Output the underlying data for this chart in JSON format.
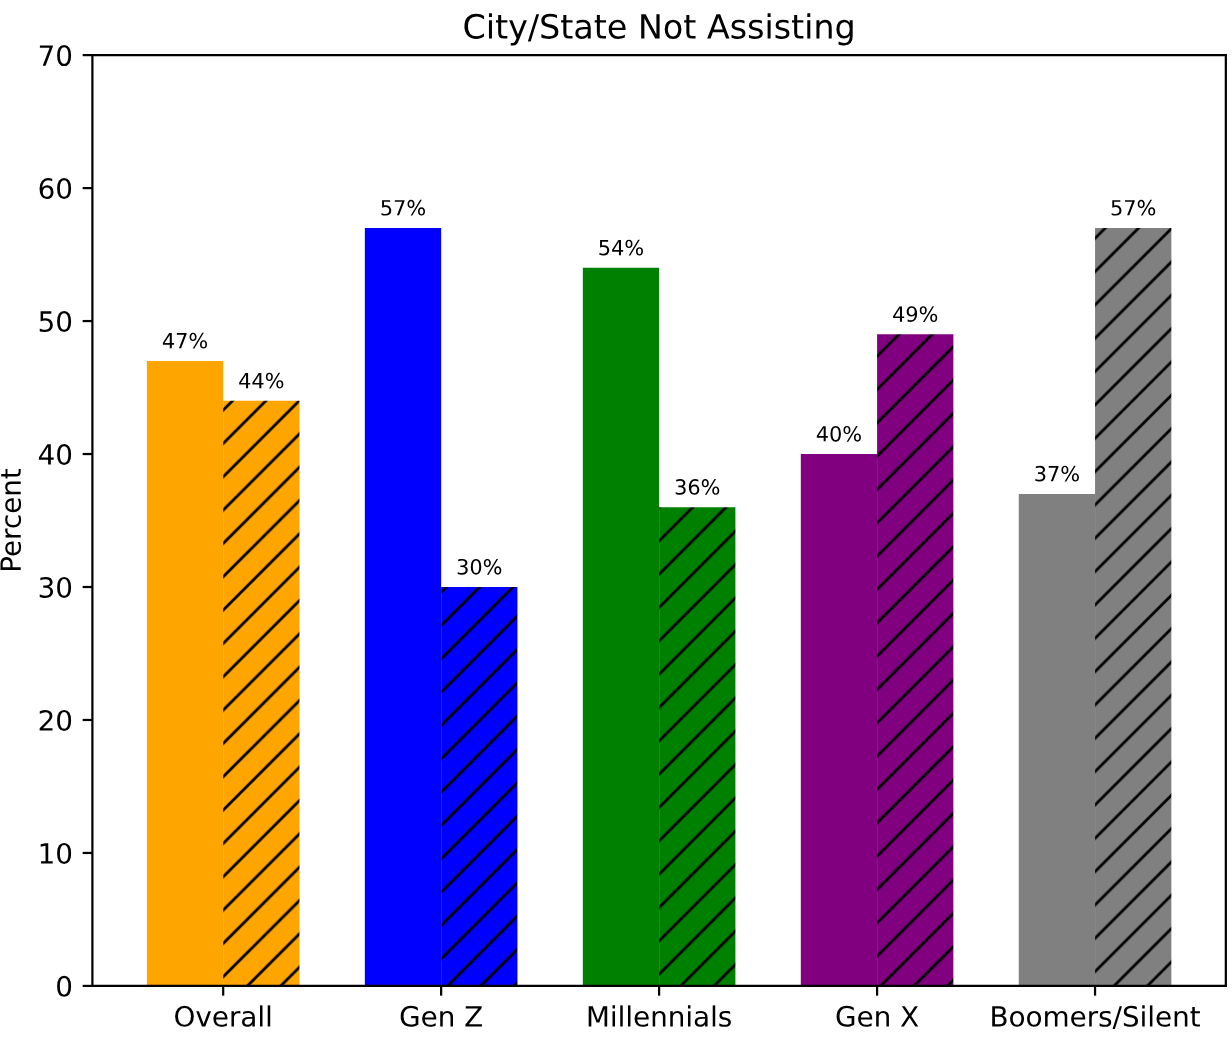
{
  "chart_data": {
    "type": "bar",
    "title": "City/State Not Assisting",
    "ylabel": "Percent",
    "categories": [
      "Overall",
      "Gen Z",
      "Millennials",
      "Gen X",
      "Boomers/Silent"
    ],
    "series": [
      {
        "colors": [
          "#ffa500",
          "#0000ff",
          "#008000",
          "#800080",
          "#808080"
        ],
        "values": [
          47,
          57,
          54,
          40,
          37
        ],
        "value_labels": [
          "47%",
          "57%",
          "54%",
          "40%",
          "37%"
        ]
      },
      {
        "colors": [
          "#ffa500",
          "#0000ff",
          "#008000",
          "#800080",
          "#808080"
        ],
        "values": [
          44,
          30,
          36,
          49,
          57
        ],
        "value_labels": [
          "44%",
          "30%",
          "36%",
          "49%",
          "57%"
        ]
      }
    ],
    "ylim": [
      0,
      70
    ],
    "yticks": [
      0,
      10,
      20,
      30,
      40,
      50,
      60,
      70
    ],
    "grid": false
  }
}
